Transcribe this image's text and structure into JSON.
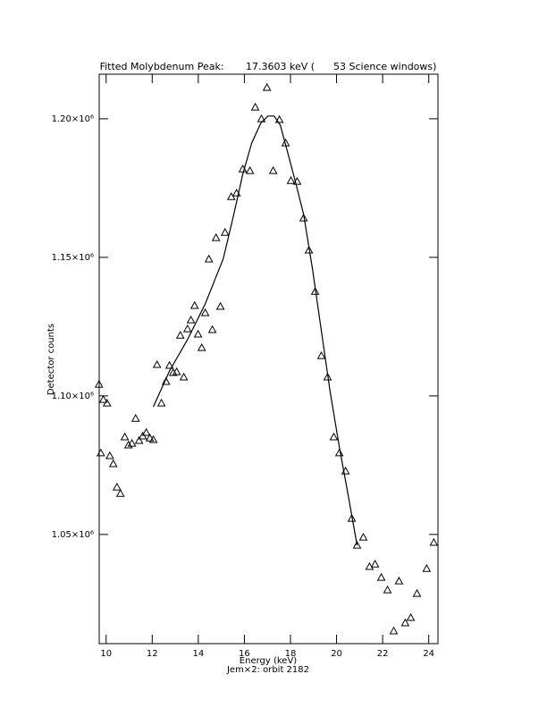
{
  "chart_data": {
    "type": "scatter",
    "title": "Fitted Molybdenum Peak:       17.3603 keV (      53 Science windows)",
    "x_label": "Energy (keV)",
    "subtitle": "Jem×2: orbit 2182",
    "y_label": "Detector counts",
    "xlim": [
      9.7,
      24.4
    ],
    "ylim": [
      1010600,
      1216100
    ],
    "xticks": [
      10,
      12,
      14,
      16,
      18,
      20,
      22,
      24
    ],
    "yticks": [
      {
        "value": 1050000,
        "label": "1.05×10⁶"
      },
      {
        "value": 1100000,
        "label": "1.10×10⁶"
      },
      {
        "value": 1150000,
        "label": "1.15×10⁶"
      },
      {
        "value": 1200000,
        "label": "1.20×10⁶"
      }
    ],
    "series": [
      {
        "type": "scatter",
        "marker": "triangle",
        "color": "#000000",
        "x": [
          9.69,
          9.77,
          9.88,
          10.04,
          10.16,
          10.31,
          10.47,
          10.62,
          10.81,
          10.97,
          11.12,
          11.28,
          11.43,
          11.59,
          11.74,
          11.9,
          12.05,
          12.21,
          12.4,
          12.6,
          12.75,
          12.91,
          13.06,
          13.22,
          13.37,
          13.53,
          13.68,
          13.84,
          13.99,
          14.15,
          14.3,
          14.46,
          14.61,
          14.77,
          14.96,
          15.16,
          15.43,
          15.66,
          15.93,
          16.24,
          16.47,
          16.74,
          16.98,
          17.25,
          17.52,
          17.79,
          18.02,
          18.29,
          18.57,
          18.8,
          19.07,
          19.34,
          19.61,
          19.88,
          20.12,
          20.39,
          20.66,
          20.89,
          21.16,
          21.43,
          21.67,
          21.94,
          22.21,
          22.48,
          22.71,
          22.98,
          23.22,
          23.49,
          23.91,
          24.22
        ],
        "values": [
          1104200,
          1079400,
          1098700,
          1097400,
          1078400,
          1075500,
          1067100,
          1064800,
          1085200,
          1082300,
          1082900,
          1091900,
          1083900,
          1085500,
          1086800,
          1084800,
          1084200,
          1111300,
          1097400,
          1105200,
          1111000,
          1108400,
          1108700,
          1121900,
          1106800,
          1124200,
          1127400,
          1132600,
          1122300,
          1117400,
          1130000,
          1149400,
          1123900,
          1157100,
          1132300,
          1159000,
          1171900,
          1173200,
          1181900,
          1181300,
          1204200,
          1200000,
          1211300,
          1181300,
          1199700,
          1191300,
          1177700,
          1177400,
          1164200,
          1152600,
          1137700,
          1114500,
          1106800,
          1085200,
          1079400,
          1072900,
          1055800,
          1046100,
          1049000,
          1038400,
          1039300,
          1034500,
          1030000,
          1015200,
          1033200,
          1018100,
          1020000,
          1028700,
          1037700,
          1047100
        ]
      },
      {
        "type": "line",
        "color": "#000000",
        "x": [
          12.05,
          12.75,
          13.53,
          14.3,
          15.08,
          15.54,
          15.93,
          16.32,
          16.71,
          17.02,
          17.29,
          17.56,
          17.87,
          18.18,
          18.57,
          18.95,
          19.34,
          19.73,
          20.12,
          20.51,
          20.89
        ],
        "values": [
          1096100,
          1109000,
          1120300,
          1133200,
          1149400,
          1165500,
          1180000,
          1191300,
          1198400,
          1201000,
          1201000,
          1197700,
          1188100,
          1178400,
          1165500,
          1146100,
          1123500,
          1101000,
          1081600,
          1063900,
          1046100
        ]
      }
    ]
  }
}
